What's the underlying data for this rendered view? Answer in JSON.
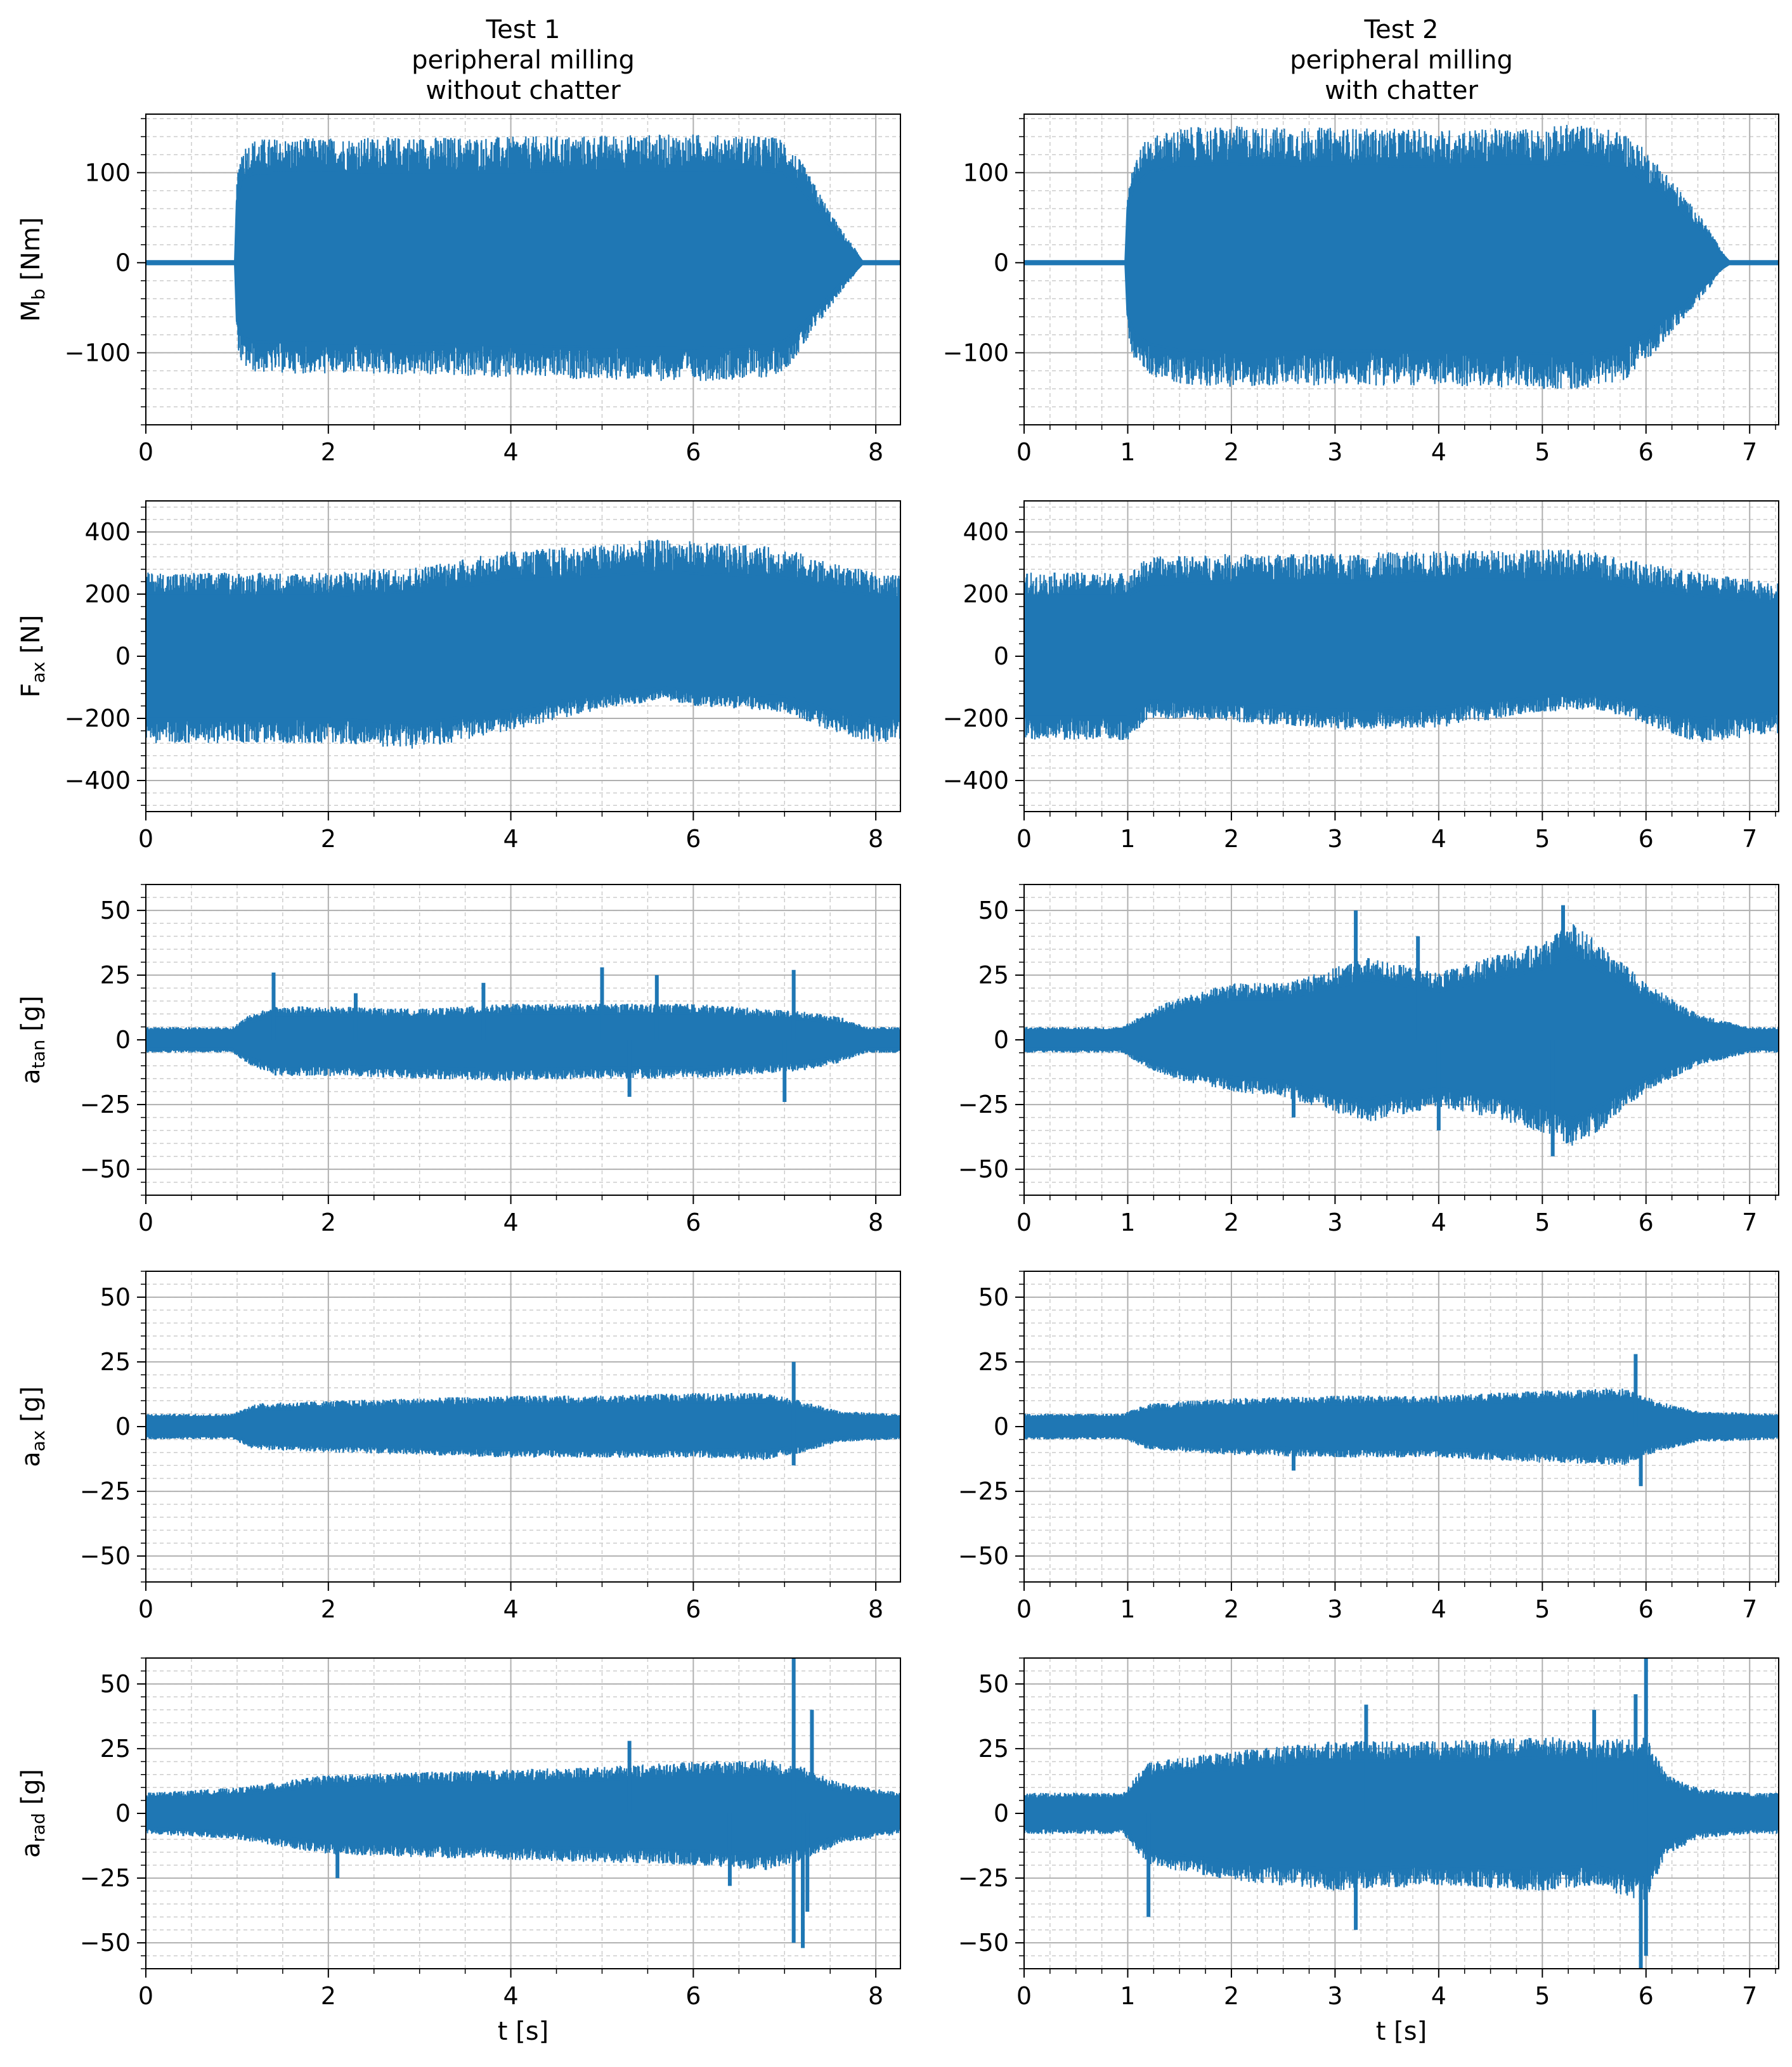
{
  "columns": [
    {
      "title_lines": [
        "Test 1",
        "peripheral milling",
        "without chatter"
      ]
    },
    {
      "title_lines": [
        "Test 2",
        "peripheral milling",
        "with chatter"
      ]
    }
  ],
  "ylabels": [
    {
      "main": "M",
      "sub": "b",
      "unit": " [Nm]"
    },
    {
      "main": "F",
      "sub": "ax",
      "unit": " [N]"
    },
    {
      "main": "a",
      "sub": "tan",
      "unit": " [g]"
    },
    {
      "main": "a",
      "sub": "ax",
      "unit": " [g]"
    },
    {
      "main": "a",
      "sub": "rad",
      "unit": " [g]"
    }
  ],
  "xlabel": "t [s]",
  "colors": {
    "series": "#1f77b4",
    "grid_major": "#b0b0b0",
    "grid_minor": "#cccccc"
  },
  "chart_data": [
    {
      "type": "area",
      "col": 0,
      "row": 0,
      "series_name": "",
      "xlim": [
        0,
        8.27
      ],
      "ylim": [
        -180,
        165
      ],
      "xticks": [
        0,
        2,
        4,
        6,
        8
      ],
      "yticks": [
        -100,
        0,
        100
      ],
      "grid": true,
      "x": [
        0,
        0.98,
        1.0,
        1.05,
        1.2,
        2,
        3,
        4,
        5,
        6,
        6.8,
        7.0,
        7.2,
        7.4,
        7.6,
        7.78,
        7.85,
        8.27
      ],
      "upper": [
        2,
        2,
        95,
        130,
        138,
        139,
        140,
        140,
        142,
        143,
        141,
        138,
        110,
        75,
        40,
        15,
        2,
        2
      ],
      "lower": [
        -2,
        -2,
        -90,
        -115,
        -122,
        -124,
        -125,
        -128,
        -130,
        -132,
        -128,
        -120,
        -95,
        -65,
        -35,
        -12,
        -2,
        -2
      ]
    },
    {
      "type": "area",
      "col": 1,
      "row": 0,
      "series_name": "",
      "xlim": [
        0,
        7.28
      ],
      "ylim": [
        -180,
        165
      ],
      "xticks": [
        0,
        1,
        2,
        3,
        4,
        5,
        6,
        7
      ],
      "yticks": [
        -100,
        0,
        100
      ],
      "grid": true,
      "x": [
        0,
        0.98,
        1.0,
        1.05,
        1.2,
        1.5,
        2,
        3,
        4,
        5,
        5.3,
        5.8,
        6.0,
        6.2,
        6.4,
        6.6,
        6.72,
        6.8,
        7.28
      ],
      "upper": [
        2,
        2,
        85,
        115,
        140,
        150,
        152,
        150,
        148,
        150,
        155,
        145,
        125,
        100,
        70,
        40,
        15,
        2,
        2
      ],
      "lower": [
        -2,
        -2,
        -80,
        -105,
        -125,
        -135,
        -138,
        -136,
        -137,
        -140,
        -142,
        -130,
        -110,
        -85,
        -58,
        -30,
        -10,
        -2,
        -2
      ]
    },
    {
      "type": "area",
      "col": 0,
      "row": 1,
      "series_name": "",
      "xlim": [
        0,
        8.27
      ],
      "ylim": [
        -500,
        500
      ],
      "xticks": [
        0,
        2,
        4,
        6,
        8
      ],
      "yticks": [
        -400,
        -200,
        0,
        200,
        400
      ],
      "grid": true,
      "x": [
        0,
        1,
        2,
        3,
        4,
        5,
        5.7,
        6,
        7,
        7.5,
        8,
        8.27
      ],
      "upper": [
        270,
        270,
        270,
        290,
        340,
        360,
        380,
        370,
        350,
        300,
        270,
        260
      ],
      "lower": [
        -280,
        -280,
        -280,
        -300,
        -240,
        -170,
        -140,
        -160,
        -180,
        -240,
        -280,
        -270
      ]
    },
    {
      "type": "area",
      "col": 1,
      "row": 1,
      "series_name": "",
      "xlim": [
        0,
        7.28
      ],
      "ylim": [
        -500,
        500
      ],
      "xticks": [
        0,
        1,
        2,
        3,
        4,
        5,
        6,
        7
      ],
      "yticks": [
        -400,
        -200,
        0,
        200,
        400
      ],
      "grid": true,
      "x": [
        0,
        1,
        1.2,
        2,
        3,
        4,
        5,
        5.5,
        6,
        6.5,
        7,
        7.28
      ],
      "upper": [
        270,
        270,
        320,
        330,
        330,
        340,
        345,
        340,
        300,
        270,
        250,
        240
      ],
      "lower": [
        -270,
        -270,
        -200,
        -210,
        -240,
        -230,
        -180,
        -170,
        -220,
        -280,
        -260,
        -250
      ]
    },
    {
      "type": "area",
      "col": 0,
      "row": 2,
      "series_name": "",
      "xlim": [
        0,
        8.27
      ],
      "ylim": [
        -60,
        60
      ],
      "xticks": [
        0,
        2,
        4,
        6,
        8
      ],
      "yticks": [
        -50,
        -25,
        0,
        25,
        50
      ],
      "grid": true,
      "x": [
        0,
        0.95,
        1.1,
        1.4,
        2,
        3,
        4,
        5,
        6,
        6.8,
        7.2,
        7.6,
        7.9,
        8.27
      ],
      "upper": [
        5,
        5,
        9,
        13,
        13,
        12,
        14,
        14,
        14,
        12,
        11,
        9,
        5,
        5
      ],
      "lower": [
        -5,
        -5,
        -9,
        -14,
        -14,
        -15,
        -16,
        -15,
        -15,
        -13,
        -12,
        -9,
        -5,
        -5
      ],
      "spikes": [
        {
          "x": 1.4,
          "y": 26
        },
        {
          "x": 2.3,
          "y": 18
        },
        {
          "x": 3.7,
          "y": 22
        },
        {
          "x": 5.0,
          "y": 28
        },
        {
          "x": 5.6,
          "y": 25
        },
        {
          "x": 7.1,
          "y": 27
        },
        {
          "x": 7.0,
          "y": -24
        },
        {
          "x": 5.3,
          "y": -22
        }
      ]
    },
    {
      "type": "area",
      "col": 1,
      "row": 2,
      "series_name": "",
      "xlim": [
        0,
        7.28
      ],
      "ylim": [
        -60,
        60
      ],
      "xticks": [
        0,
        1,
        2,
        3,
        4,
        5,
        6,
        7
      ],
      "yticks": [
        -50,
        -25,
        0,
        25,
        50
      ],
      "grid": true,
      "x": [
        0,
        0.95,
        1.1,
        1.4,
        2,
        2.5,
        3,
        3.3,
        4,
        4.5,
        5,
        5.3,
        5.6,
        6,
        6.5,
        7,
        7.28
      ],
      "upper": [
        5,
        5,
        9,
        15,
        22,
        22,
        28,
        32,
        26,
        32,
        38,
        45,
        36,
        22,
        10,
        5,
        5
      ],
      "lower": [
        -5,
        -5,
        -9,
        -15,
        -20,
        -22,
        -28,
        -32,
        -26,
        -30,
        -36,
        -42,
        -34,
        -20,
        -10,
        -5,
        -5
      ],
      "spikes": [
        {
          "x": 3.2,
          "y": 50
        },
        {
          "x": 5.2,
          "y": 52
        },
        {
          "x": 5.1,
          "y": -45
        },
        {
          "x": 4.0,
          "y": -35
        },
        {
          "x": 2.6,
          "y": -30
        },
        {
          "x": 3.8,
          "y": 40
        }
      ]
    },
    {
      "type": "area",
      "col": 0,
      "row": 3,
      "series_name": "",
      "xlim": [
        0,
        8.27
      ],
      "ylim": [
        -60,
        60
      ],
      "xticks": [
        0,
        2,
        4,
        6,
        8
      ],
      "yticks": [
        -50,
        -25,
        0,
        25,
        50
      ],
      "grid": true,
      "x": [
        0,
        0.95,
        1.2,
        2,
        3,
        4,
        5,
        6,
        6.8,
        7.2,
        7.6,
        8.27
      ],
      "upper": [
        5,
        5,
        9,
        10,
        11,
        12,
        12,
        13,
        13,
        10,
        6,
        5
      ],
      "lower": [
        -5,
        -5,
        -9,
        -10,
        -11,
        -12,
        -12,
        -12,
        -13,
        -10,
        -6,
        -5
      ],
      "spikes": [
        {
          "x": 7.1,
          "y": 25
        },
        {
          "x": 7.1,
          "y": -15
        }
      ]
    },
    {
      "type": "area",
      "col": 1,
      "row": 3,
      "series_name": "",
      "xlim": [
        0,
        7.28
      ],
      "ylim": [
        -60,
        60
      ],
      "xticks": [
        0,
        1,
        2,
        3,
        4,
        5,
        6,
        7
      ],
      "yticks": [
        -50,
        -25,
        0,
        25,
        50
      ],
      "grid": true,
      "x": [
        0,
        0.95,
        1.2,
        2,
        3,
        4,
        5,
        5.8,
        6.1,
        6.5,
        7.28
      ],
      "upper": [
        5,
        5,
        9,
        11,
        12,
        12,
        14,
        15,
        10,
        6,
        5
      ],
      "lower": [
        -5,
        -5,
        -9,
        -11,
        -12,
        -12,
        -14,
        -15,
        -10,
        -6,
        -5
      ],
      "spikes": [
        {
          "x": 5.9,
          "y": 28
        },
        {
          "x": 5.95,
          "y": -23
        },
        {
          "x": 2.6,
          "y": -17
        }
      ]
    },
    {
      "type": "area",
      "col": 0,
      "row": 4,
      "series_name": "",
      "xlim": [
        0,
        8.27
      ],
      "ylim": [
        -60,
        60
      ],
      "xticks": [
        0,
        2,
        4,
        6,
        8
      ],
      "yticks": [
        -50,
        -25,
        0,
        25,
        50
      ],
      "grid": true,
      "x": [
        0,
        1,
        2,
        3,
        4,
        5,
        6,
        6.8,
        7.2,
        7.6,
        8.27
      ],
      "upper": [
        8,
        10,
        15,
        16,
        17,
        18,
        20,
        21,
        18,
        12,
        8
      ],
      "lower": [
        -8,
        -10,
        -16,
        -17,
        -18,
        -19,
        -20,
        -22,
        -18,
        -12,
        -8
      ],
      "spikes": [
        {
          "x": 7.1,
          "y": 60
        },
        {
          "x": 7.1,
          "y": -50
        },
        {
          "x": 7.2,
          "y": -52
        },
        {
          "x": 7.3,
          "y": 40
        },
        {
          "x": 7.25,
          "y": -38
        },
        {
          "x": 5.3,
          "y": 28
        },
        {
          "x": 6.4,
          "y": -28
        },
        {
          "x": 2.1,
          "y": -25
        }
      ]
    },
    {
      "type": "area",
      "col": 1,
      "row": 4,
      "series_name": "",
      "xlim": [
        0,
        7.28
      ],
      "ylim": [
        -60,
        60
      ],
      "xticks": [
        0,
        1,
        2,
        3,
        4,
        5,
        6,
        7
      ],
      "yticks": [
        -50,
        -25,
        0,
        25,
        50
      ],
      "grid": true,
      "x": [
        0,
        0.95,
        1.2,
        2,
        3,
        4,
        5,
        5.5,
        6,
        6.2,
        6.5,
        7,
        7.28
      ],
      "upper": [
        8,
        8,
        20,
        24,
        28,
        28,
        30,
        28,
        30,
        15,
        10,
        8,
        8
      ],
      "lower": [
        -8,
        -8,
        -20,
        -26,
        -30,
        -28,
        -30,
        -28,
        -35,
        -16,
        -10,
        -8,
        -8
      ],
      "spikes": [
        {
          "x": 6.0,
          "y": 60
        },
        {
          "x": 5.95,
          "y": -60
        },
        {
          "x": 6.0,
          "y": -55
        },
        {
          "x": 1.2,
          "y": -40
        },
        {
          "x": 3.2,
          "y": -45
        },
        {
          "x": 3.3,
          "y": 42
        },
        {
          "x": 5.5,
          "y": 40
        },
        {
          "x": 5.9,
          "y": 46
        }
      ]
    }
  ]
}
